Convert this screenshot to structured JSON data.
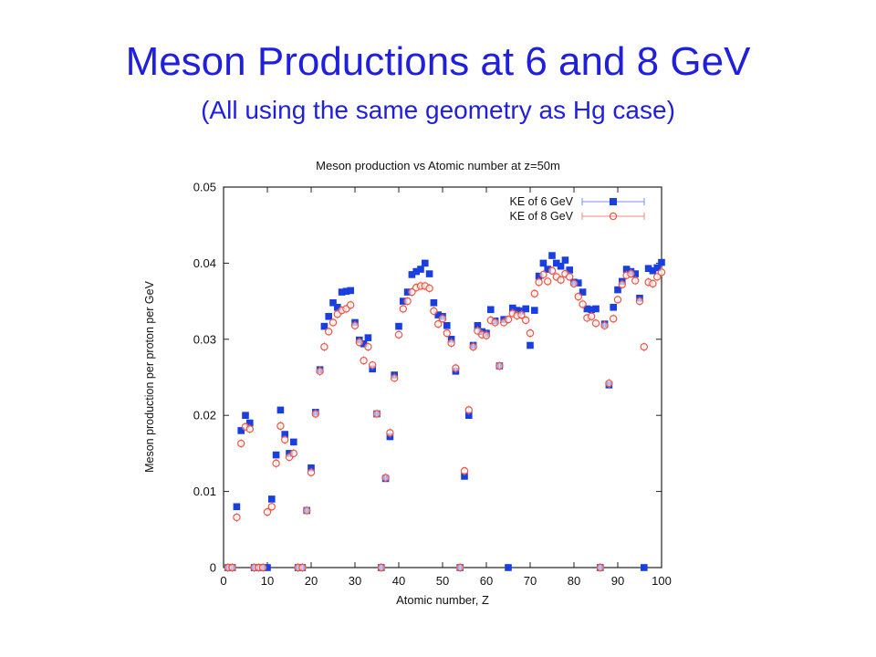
{
  "slide": {
    "title": "Meson Productions at 6 and 8 GeV",
    "subtitle": "(All using the same geometry as Hg case)"
  },
  "chart_data": {
    "type": "scatter",
    "title": "Meson production vs Atomic number at z=50m",
    "xlabel": "Atomic number, Z",
    "ylabel": "Meson production per proton per GeV",
    "xlim": [
      0,
      100
    ],
    "ylim": [
      0,
      0.05
    ],
    "xticks": [
      "0",
      "10",
      "20",
      "30",
      "40",
      "50",
      "60",
      "70",
      "80",
      "90",
      "100"
    ],
    "yticks": [
      "0",
      "0.01",
      "0.02",
      "0.03",
      "0.04",
      "0.05"
    ],
    "grid": false,
    "legend_position": "top-right",
    "series": [
      {
        "name": "KE of 6 GeV",
        "marker": "filled-square",
        "color": "#1a3fe0",
        "points": [
          [
            1,
            0
          ],
          [
            2,
            0
          ],
          [
            3,
            0.008
          ],
          [
            4,
            0.018
          ],
          [
            5,
            0.02
          ],
          [
            6,
            0.019
          ],
          [
            7,
            0
          ],
          [
            8,
            0
          ],
          [
            9,
            0
          ],
          [
            10,
            0
          ],
          [
            11,
            0.009
          ],
          [
            12,
            0.0148
          ],
          [
            13,
            0.0207
          ],
          [
            14,
            0.0175
          ],
          [
            15,
            0.015
          ],
          [
            16,
            0.0165
          ],
          [
            17,
            0
          ],
          [
            18,
            0
          ],
          [
            19,
            0.0075
          ],
          [
            20,
            0.0131
          ],
          [
            21,
            0.0204
          ],
          [
            22,
            0.026
          ],
          [
            23,
            0.0317
          ],
          [
            24,
            0.033
          ],
          [
            25,
            0.0348
          ],
          [
            26,
            0.0342
          ],
          [
            27,
            0.0362
          ],
          [
            28,
            0.0363
          ],
          [
            29,
            0.0364
          ],
          [
            30,
            0.0322
          ],
          [
            31,
            0.0299
          ],
          [
            32,
            0.0294
          ],
          [
            33,
            0.0302
          ],
          [
            34,
            0.0261
          ],
          [
            35,
            0.0202
          ],
          [
            36,
            0
          ],
          [
            37,
            0.0117
          ],
          [
            38,
            0.0172
          ],
          [
            39,
            0.0253
          ],
          [
            40,
            0.0317
          ],
          [
            41,
            0.035
          ],
          [
            42,
            0.0362
          ],
          [
            43,
            0.0385
          ],
          [
            44,
            0.0389
          ],
          [
            45,
            0.0392
          ],
          [
            46,
            0.04
          ],
          [
            47,
            0.0386
          ],
          [
            48,
            0.0348
          ],
          [
            49,
            0.0332
          ],
          [
            50,
            0.033
          ],
          [
            51,
            0.0318
          ],
          [
            52,
            0.03
          ],
          [
            53,
            0.0258
          ],
          [
            54,
            0
          ],
          [
            55,
            0.012
          ],
          [
            56,
            0.02
          ],
          [
            57,
            0.0292
          ],
          [
            58,
            0.0318
          ],
          [
            59,
            0.031
          ],
          [
            60,
            0.0308
          ],
          [
            61,
            0.0339
          ],
          [
            62,
            0.0324
          ],
          [
            63,
            0.0265
          ],
          [
            64,
            0.0326
          ],
          [
            65,
            0
          ],
          [
            66,
            0.0341
          ],
          [
            67,
            0.0338
          ],
          [
            68,
            0.0337
          ],
          [
            69,
            0.034
          ],
          [
            70,
            0.0292
          ],
          [
            71,
            0.0338
          ],
          [
            72,
            0.0383
          ],
          [
            73,
            0.04
          ],
          [
            74,
            0.0392
          ],
          [
            75,
            0.041
          ],
          [
            76,
            0.04
          ],
          [
            77,
            0.0396
          ],
          [
            78,
            0.0404
          ],
          [
            79,
            0.0391
          ],
          [
            80,
            0.0375
          ],
          [
            81,
            0.0374
          ],
          [
            82,
            0.0362
          ],
          [
            83,
            0.034
          ],
          [
            84,
            0.0339
          ],
          [
            85,
            0.034
          ],
          [
            86,
            0
          ],
          [
            87,
            0.032
          ],
          [
            88,
            0.024
          ],
          [
            89,
            0.0342
          ],
          [
            90,
            0.0365
          ],
          [
            91,
            0.0376
          ],
          [
            92,
            0.0392
          ],
          [
            93,
            0.0389
          ],
          [
            94,
            0.0386
          ],
          [
            95,
            0.0354
          ],
          [
            96,
            0
          ],
          [
            97,
            0.0393
          ],
          [
            98,
            0.039
          ],
          [
            99,
            0.0394
          ],
          [
            100,
            0.0401
          ]
        ]
      },
      {
        "name": "KE of 8 GeV",
        "marker": "open-circle-with-errorbar",
        "color": "#ee5544",
        "points": [
          [
            1,
            0
          ],
          [
            2,
            0
          ],
          [
            3,
            0.0066
          ],
          [
            4,
            0.0163
          ],
          [
            5,
            0.0185
          ],
          [
            6,
            0.0182
          ],
          [
            7,
            0
          ],
          [
            8,
            0
          ],
          [
            9,
            0
          ],
          [
            10,
            0.0073
          ],
          [
            11,
            0.008
          ],
          [
            12,
            0.0137
          ],
          [
            13,
            0.0186
          ],
          [
            14,
            0.0168
          ],
          [
            15,
            0.0145
          ],
          [
            16,
            0.015
          ],
          [
            17,
            0
          ],
          [
            18,
            0
          ],
          [
            19,
            0.0075
          ],
          [
            20,
            0.0125
          ],
          [
            21,
            0.0202
          ],
          [
            22,
            0.0258
          ],
          [
            23,
            0.029
          ],
          [
            24,
            0.031
          ],
          [
            25,
            0.0322
          ],
          [
            26,
            0.0333
          ],
          [
            27,
            0.0338
          ],
          [
            28,
            0.034
          ],
          [
            29,
            0.0345
          ],
          [
            30,
            0.0318
          ],
          [
            31,
            0.0296
          ],
          [
            32,
            0.0272
          ],
          [
            33,
            0.029
          ],
          [
            34,
            0.0266
          ],
          [
            35,
            0.0202
          ],
          [
            36,
            0
          ],
          [
            37,
            0.0118
          ],
          [
            38,
            0.0177
          ],
          [
            39,
            0.0249
          ],
          [
            40,
            0.0306
          ],
          [
            41,
            0.034
          ],
          [
            42,
            0.035
          ],
          [
            43,
            0.0362
          ],
          [
            44,
            0.0368
          ],
          [
            45,
            0.037
          ],
          [
            46,
            0.037
          ],
          [
            47,
            0.0367
          ],
          [
            48,
            0.0337
          ],
          [
            49,
            0.032
          ],
          [
            50,
            0.0327
          ],
          [
            51,
            0.0308
          ],
          [
            52,
            0.0295
          ],
          [
            53,
            0.0262
          ],
          [
            54,
            0
          ],
          [
            55,
            0.0127
          ],
          [
            56,
            0.0207
          ],
          [
            57,
            0.029
          ],
          [
            58,
            0.0311
          ],
          [
            59,
            0.0306
          ],
          [
            60,
            0.0305
          ],
          [
            61,
            0.0325
          ],
          [
            62,
            0.0322
          ],
          [
            63,
            0.0265
          ],
          [
            64,
            0.0322
          ],
          [
            65,
            0.0326
          ],
          [
            66,
            0.0334
          ],
          [
            67,
            0.0331
          ],
          [
            68,
            0.0332
          ],
          [
            69,
            0.0325
          ],
          [
            70,
            0.0308
          ],
          [
            71,
            0.036
          ],
          [
            72,
            0.0375
          ],
          [
            73,
            0.0385
          ],
          [
            74,
            0.0376
          ],
          [
            75,
            0.039
          ],
          [
            76,
            0.0382
          ],
          [
            77,
            0.0378
          ],
          [
            78,
            0.0386
          ],
          [
            79,
            0.0382
          ],
          [
            80,
            0.0373
          ],
          [
            81,
            0.0356
          ],
          [
            82,
            0.0346
          ],
          [
            83,
            0.0328
          ],
          [
            84,
            0.033
          ],
          [
            85,
            0.0321
          ],
          [
            86,
            0
          ],
          [
            87,
            0.0318
          ],
          [
            88,
            0.0242
          ],
          [
            89,
            0.0327
          ],
          [
            90,
            0.0352
          ],
          [
            91,
            0.0372
          ],
          [
            92,
            0.0384
          ],
          [
            93,
            0.0386
          ],
          [
            94,
            0.0377
          ],
          [
            95,
            0.035
          ],
          [
            96,
            0.029
          ],
          [
            97,
            0.0375
          ],
          [
            98,
            0.0373
          ],
          [
            99,
            0.0382
          ],
          [
            100,
            0.0388
          ]
        ]
      }
    ]
  }
}
